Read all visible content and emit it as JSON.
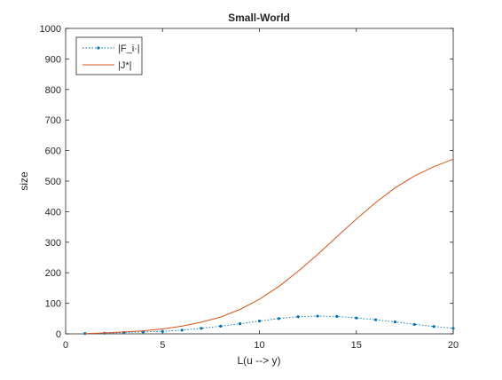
{
  "chart_data": {
    "type": "line",
    "title": "Small-World",
    "xlabel": "L(u --> y)",
    "ylabel": "size",
    "xlim": [
      0,
      20
    ],
    "ylim": [
      0,
      1000
    ],
    "xticks": [
      "0",
      "5",
      "10",
      "15",
      "20"
    ],
    "yticks": [
      "0",
      "100",
      "200",
      "300",
      "400",
      "500",
      "600",
      "700",
      "800",
      "900",
      "1000"
    ],
    "grid": false,
    "legend_position": "top-left",
    "x": [
      1,
      2,
      3,
      4,
      5,
      6,
      7,
      8,
      9,
      10,
      11,
      12,
      13,
      14,
      15,
      16,
      17,
      18,
      19,
      20
    ],
    "series": [
      {
        "name": "|F_i·|",
        "color": "#0072BD",
        "style": "dotted-with-point-markers",
        "values": [
          1,
          2,
          4,
          6,
          8,
          12,
          18,
          25,
          33,
          42,
          50,
          56,
          58,
          57,
          52,
          46,
          39,
          31,
          24,
          18
        ]
      },
      {
        "name": "|J*|",
        "color": "#D95319",
        "style": "solid",
        "values": [
          1,
          3,
          6,
          10,
          16,
          25,
          38,
          55,
          80,
          113,
          155,
          205,
          260,
          318,
          376,
          430,
          478,
          517,
          547,
          572
        ]
      }
    ]
  }
}
